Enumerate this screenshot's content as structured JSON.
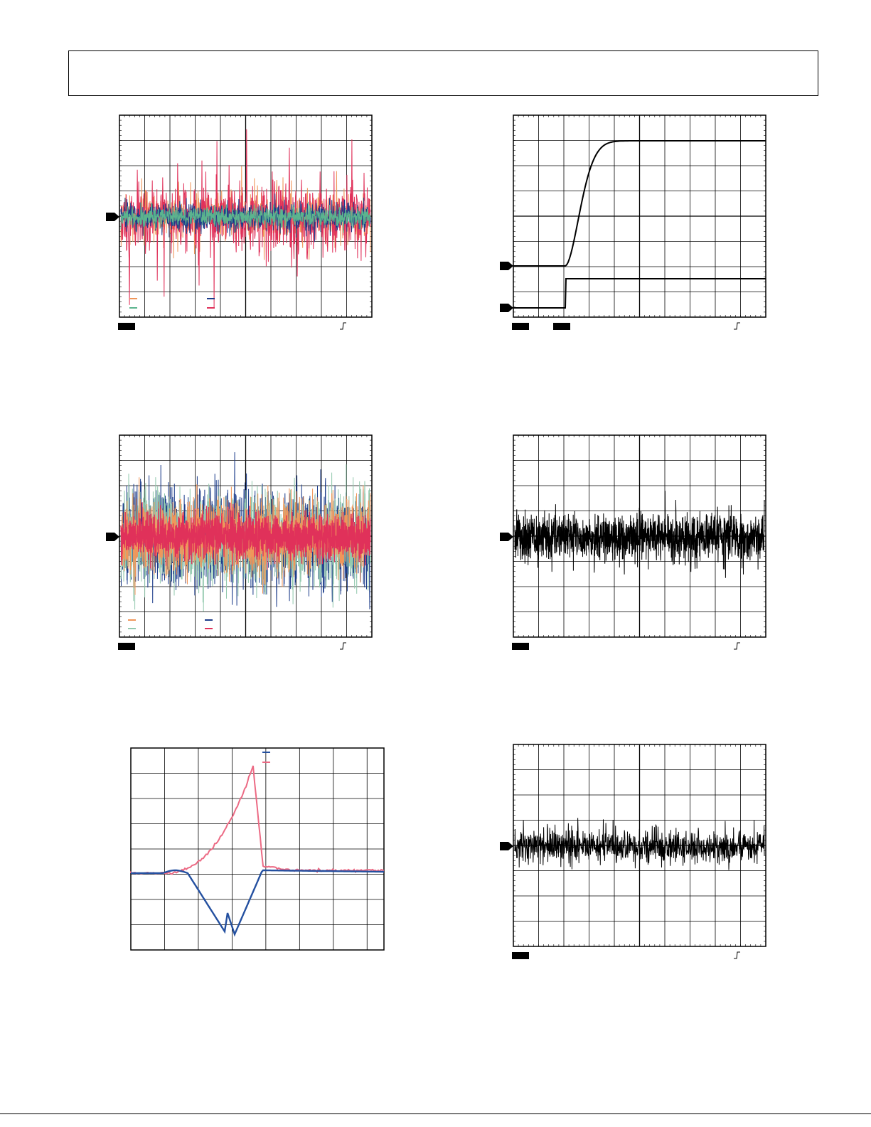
{
  "colors": {
    "orange": "#f0965a",
    "green": "#5bb48e",
    "pale_green": "#93c9ae",
    "navy": "#1c3c8a",
    "red": "#e0315a",
    "pink": "#ec6a84",
    "blue": "#2450a0",
    "black": "#000000"
  },
  "icons": {
    "marker": "ground-reference-arrow-icon",
    "trigger": "rising-edge-trigger-icon",
    "channel": "channel-badge-icon"
  },
  "scopes": [
    {
      "id": "scope-1",
      "kind": "noise",
      "legend_rows": 2
    },
    {
      "id": "scope-2",
      "kind": "step"
    },
    {
      "id": "scope-3",
      "kind": "noise",
      "legend_rows": 2
    },
    {
      "id": "scope-4",
      "kind": "noise-single"
    },
    {
      "id": "scope-5",
      "kind": "transient"
    },
    {
      "id": "scope-6",
      "kind": "noise-single"
    }
  ]
}
